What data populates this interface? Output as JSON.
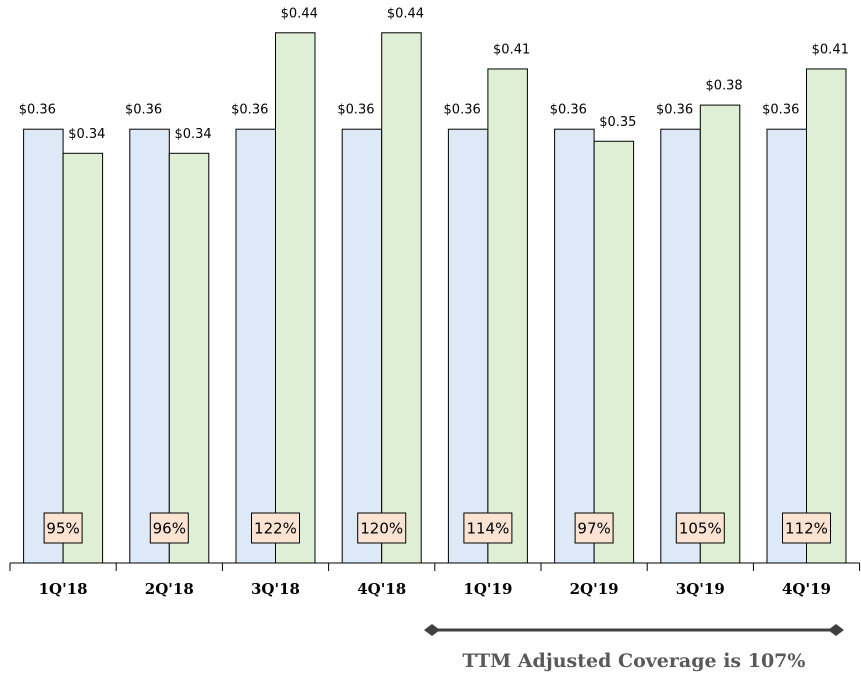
{
  "chart_data": {
    "type": "bar",
    "categories": [
      "1Q'18",
      "2Q'18",
      "3Q'18",
      "4Q'18",
      "1Q'19",
      "2Q'19",
      "3Q'19",
      "4Q'19"
    ],
    "series": [
      {
        "color": "#dde9f6",
        "values": [
          0.36,
          0.36,
          0.36,
          0.36,
          0.36,
          0.36,
          0.36,
          0.36
        ],
        "value_labels": [
          "$0.36",
          "$0.36",
          "$0.36",
          "$0.36",
          "$0.36",
          "$0.36",
          "$0.36",
          "$0.36"
        ]
      },
      {
        "color": "#deefd6",
        "values": [
          0.34,
          0.34,
          0.44,
          0.44,
          0.41,
          0.35,
          0.38,
          0.41
        ],
        "value_labels": [
          "$0.34",
          "$0.34",
          "$0.44",
          "$0.44",
          "$0.41",
          "$0.35",
          "$0.38",
          "$0.41"
        ]
      }
    ],
    "coverage": {
      "values": [
        95,
        96,
        122,
        120,
        114,
        97,
        105,
        112
      ],
      "value_labels": [
        "95%",
        "96%",
        "122%",
        "120%",
        "114%",
        "97%",
        "105%",
        "112%"
      ]
    },
    "annotation": "TTM Adjusted Coverage is 107%"
  }
}
